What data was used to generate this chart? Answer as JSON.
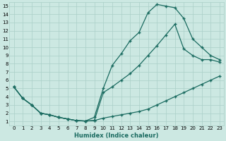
{
  "xlabel": "Humidex (Indice chaleur)",
  "bg_color": "#cce8e2",
  "grid_color": "#aacfc8",
  "line_color": "#1a6b60",
  "xlim": [
    -0.5,
    23.5
  ],
  "ylim": [
    0.5,
    15.5
  ],
  "xticks": [
    0,
    1,
    2,
    3,
    4,
    5,
    6,
    7,
    8,
    9,
    10,
    11,
    12,
    13,
    14,
    15,
    16,
    17,
    18,
    19,
    20,
    21,
    22,
    23
  ],
  "yticks": [
    1,
    2,
    3,
    4,
    5,
    6,
    7,
    8,
    9,
    10,
    11,
    12,
    13,
    14,
    15
  ],
  "line1_x": [
    0,
    1,
    2,
    3,
    4,
    5,
    6,
    7,
    8,
    9,
    10,
    11,
    12,
    13,
    14,
    15,
    16,
    17,
    18,
    19,
    20,
    21,
    22,
    23
  ],
  "line1_y": [
    5.2,
    3.8,
    3.0,
    2.0,
    1.8,
    1.5,
    1.3,
    1.1,
    1.05,
    1.1,
    1.4,
    1.6,
    1.8,
    2.0,
    2.2,
    2.5,
    3.0,
    3.5,
    4.0,
    4.5,
    5.0,
    5.5,
    6.0,
    6.5
  ],
  "line2_x": [
    0,
    1,
    2,
    3,
    4,
    5,
    6,
    7,
    8,
    9,
    10,
    11,
    12,
    13,
    14,
    15,
    16,
    17,
    18,
    19,
    20,
    21,
    22,
    23
  ],
  "line2_y": [
    5.2,
    3.8,
    3.0,
    2.0,
    1.8,
    1.5,
    1.3,
    1.1,
    1.05,
    1.1,
    4.5,
    5.2,
    6.0,
    6.8,
    7.8,
    9.0,
    10.2,
    11.5,
    12.8,
    9.8,
    9.0,
    8.5,
    8.5,
    8.2
  ],
  "line3_x": [
    0,
    1,
    2,
    3,
    4,
    5,
    6,
    7,
    8,
    9,
    10,
    11,
    12,
    13,
    14,
    15,
    16,
    17,
    18,
    19,
    20,
    21,
    22,
    23
  ],
  "line3_y": [
    5.2,
    3.8,
    3.0,
    2.0,
    1.8,
    1.5,
    1.3,
    1.1,
    1.05,
    1.5,
    5.0,
    7.8,
    9.2,
    10.8,
    11.8,
    14.2,
    15.2,
    15.0,
    14.8,
    13.5,
    11.0,
    10.0,
    9.0,
    8.5
  ],
  "marker": "+",
  "markersize": 3,
  "linewidth": 0.9,
  "tick_fontsize": 5.0,
  "xlabel_fontsize": 6.0
}
